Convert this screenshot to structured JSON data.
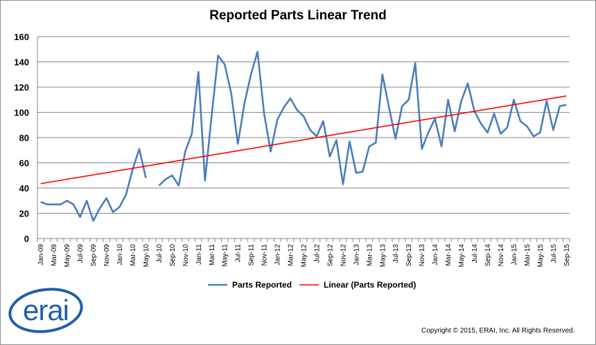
{
  "chart_data": {
    "type": "line",
    "title": "Reported Parts Linear Trend",
    "xlabel": "",
    "ylabel": "",
    "ylim": [
      0,
      160
    ],
    "yticks": [
      0,
      20,
      40,
      60,
      80,
      100,
      120,
      140,
      160
    ],
    "grid": true,
    "legend_position": "bottom",
    "x": [
      "Jan-09",
      "Feb-09",
      "Mar-09",
      "Apr-09",
      "May-09",
      "Jun-09",
      "Jul-09",
      "Aug-09",
      "Sep-09",
      "Oct-09",
      "Nov-09",
      "Dec-09",
      "Jan-10",
      "Feb-10",
      "Mar-10",
      "Apr-10",
      "May-10",
      "Jun-10",
      "Jul-10",
      "Aug-10",
      "Sep-10",
      "Oct-10",
      "Nov-10",
      "Dec-10",
      "Jan-11",
      "Feb-11",
      "Mar-11",
      "Apr-11",
      "May-11",
      "Jun-11",
      "Jul-11",
      "Aug-11",
      "Sep-11",
      "Oct-11",
      "Nov-11",
      "Dec-11",
      "Jan-12",
      "Feb-12",
      "Mar-12",
      "Apr-12",
      "May-12",
      "Jun-12",
      "Jul-12",
      "Aug-12",
      "Sep-12",
      "Oct-12",
      "Nov-12",
      "Dec-12",
      "Jan-13",
      "Feb-13",
      "Mar-13",
      "Apr-13",
      "May-13",
      "Jun-13",
      "Jul-13",
      "Aug-13",
      "Sep-13",
      "Oct-13",
      "Nov-13",
      "Dec-13",
      "Jan-14",
      "Feb-14",
      "Mar-14",
      "Apr-14",
      "May-14",
      "Jun-14",
      "Jul-14",
      "Aug-14",
      "Sep-14",
      "Oct-14",
      "Nov-14",
      "Dec-14",
      "Jan-15",
      "Feb-15",
      "Mar-15",
      "Apr-15",
      "May-15",
      "Jun-15",
      "Jul-15",
      "Aug-15",
      "Sep-15"
    ],
    "xtick_labels": [
      "Jan-09",
      "Mar-09",
      "May-09",
      "Jul-09",
      "Sep-09",
      "Nov-09",
      "Jan-10",
      "Mar-10",
      "May-10",
      "Jul-10",
      "Sep-10",
      "Nov-10",
      "Jan-11",
      "Mar-11",
      "May-11",
      "Jul-11",
      "Sep-11",
      "Nov-11",
      "Jan-12",
      "Mar-12",
      "May-12",
      "Jul-12",
      "Sep-12",
      "Nov-12",
      "Jan-13",
      "Mar-13",
      "May-13",
      "Jul-13",
      "Sep-13",
      "Nov-13",
      "Jan-14",
      "Mar-14",
      "May-14",
      "Jul-14",
      "Sep-14",
      "Nov-14",
      "Jan-15",
      "Mar-15",
      "May-15",
      "Jul-15",
      "Sep-15"
    ],
    "series": [
      {
        "name": "Parts Reported",
        "color": "#4a7ebb",
        "values": [
          29,
          27,
          27,
          27,
          30,
          27,
          17,
          30,
          14,
          24,
          32,
          21,
          25,
          35,
          55,
          71,
          48,
          null,
          42,
          47,
          50,
          42,
          69,
          83,
          132,
          46,
          97,
          145,
          138,
          115,
          75,
          107,
          130,
          148,
          99,
          69,
          94,
          104,
          111,
          102,
          97,
          86,
          81,
          93,
          65,
          78,
          43,
          77,
          52,
          53,
          73,
          76,
          130,
          104,
          79,
          105,
          110,
          139,
          71,
          84,
          95,
          73,
          110,
          85,
          109,
          123,
          101,
          91,
          84,
          99,
          83,
          88,
          110,
          93,
          89,
          81,
          84,
          109,
          86,
          105,
          106
        ]
      },
      {
        "name": "Linear (Parts Reported)",
        "color": "#ff0000",
        "type": "trendline",
        "start": 43.5,
        "end": 113
      }
    ]
  },
  "copyright": "Copyright © 2015, ERAI, Inc.  All Rights Reserved.",
  "logo": {
    "text": "erai",
    "color": "#1f5fa8"
  }
}
